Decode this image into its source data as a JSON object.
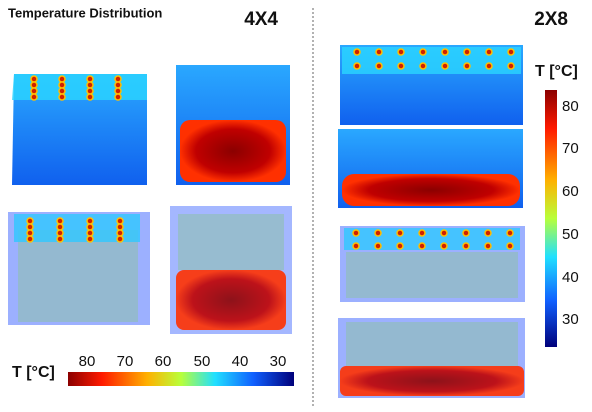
{
  "header": {
    "title": "Temperature Distribution"
  },
  "panels": [
    {
      "label": "4X4"
    },
    {
      "label": "2X8"
    }
  ],
  "colorbars": [
    {
      "label": "T [°C]",
      "ticks": [
        "80",
        "70",
        "60",
        "50",
        "40",
        "30"
      ]
    },
    {
      "label": "T [°C]",
      "ticks": [
        "80",
        "70",
        "60",
        "50",
        "40",
        "30"
      ]
    }
  ]
}
